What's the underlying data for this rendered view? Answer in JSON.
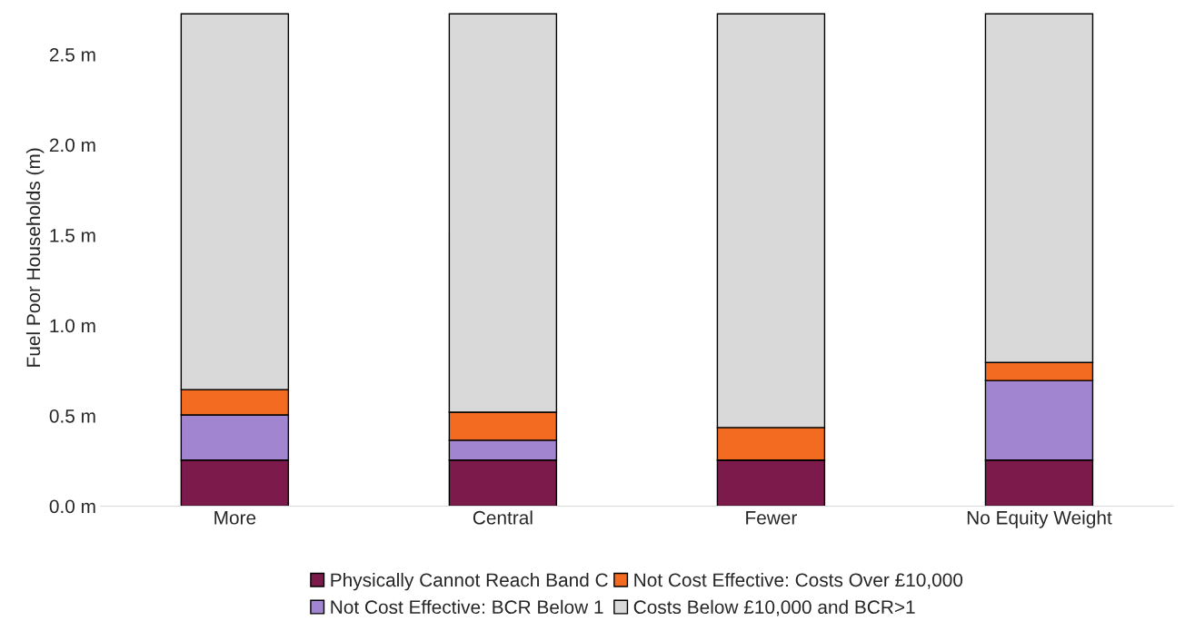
{
  "chart_data": {
    "type": "bar",
    "stacked": true,
    "ylabel": "Fuel Poor Households (m)",
    "categories": [
      "More",
      "Central",
      "Fewer",
      "No Equity Weight"
    ],
    "series": [
      {
        "name": "Physically Cannot Reach Band C",
        "color": "#7b1a4b",
        "values": [
          0.255,
          0.255,
          0.255,
          0.255
        ]
      },
      {
        "name": "Not Cost Effective: BCR Below 1",
        "color": "#a285d0",
        "values": [
          0.25,
          0.11,
          0,
          0.44
        ]
      },
      {
        "name": "Not Cost Effective: Costs Over £10,000",
        "color": "#f26b21",
        "values": [
          0.14,
          0.155,
          0.18,
          0.1
        ]
      },
      {
        "name": "Costs Below £10,000 and BCR>1",
        "color": "#d9d9d9",
        "values": [
          2.08,
          2.205,
          2.29,
          1.93
        ]
      }
    ],
    "ylim": [
      0,
      2.75
    ],
    "yticks": [
      {
        "value": 0,
        "label": "0.0 m"
      },
      {
        "value": 0.5,
        "label": "0.5 m"
      },
      {
        "value": 1,
        "label": "1.0 m"
      },
      {
        "value": 1.5,
        "label": "1.5 m"
      },
      {
        "value": 2,
        "label": "2.0 m"
      },
      {
        "value": 2.5,
        "label": "2.5 m"
      }
    ],
    "grid": false,
    "legend": "bottom"
  }
}
